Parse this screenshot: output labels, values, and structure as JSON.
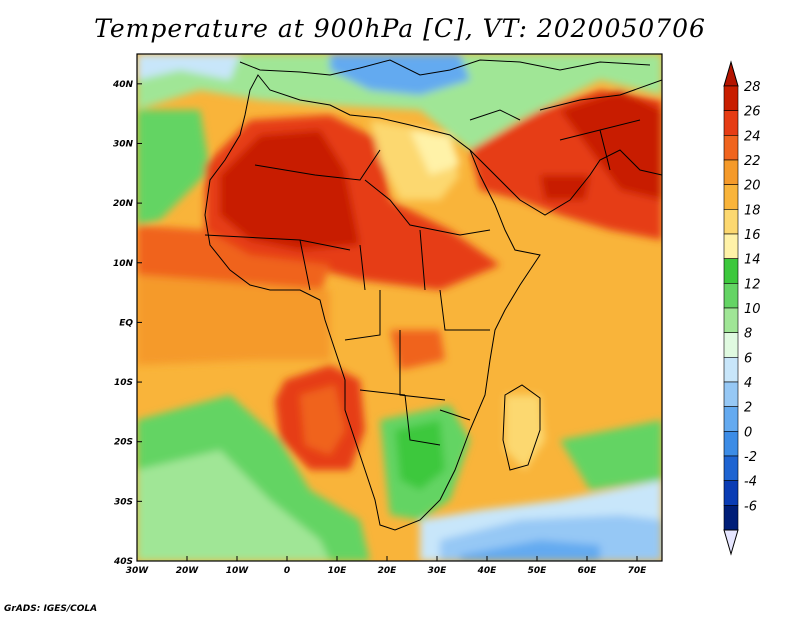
{
  "title": "Temperature at 900hPa [C], VT: 2020050706",
  "credit": "GrADS: IGES/COLA",
  "map": {
    "projection": "lat-lon",
    "lon_range": [
      -30,
      75
    ],
    "lat_range": [
      -40,
      45
    ],
    "x_ticks": [
      {
        "lon": -30,
        "label": "30W"
      },
      {
        "lon": -20,
        "label": "20W"
      },
      {
        "lon": -10,
        "label": "10W"
      },
      {
        "lon": 0,
        "label": "0"
      },
      {
        "lon": 10,
        "label": "10E"
      },
      {
        "lon": 20,
        "label": "20E"
      },
      {
        "lon": 30,
        "label": "30E"
      },
      {
        "lon": 40,
        "label": "40E"
      },
      {
        "lon": 50,
        "label": "50E"
      },
      {
        "lon": 60,
        "label": "60E"
      },
      {
        "lon": 70,
        "label": "70E"
      }
    ],
    "y_ticks": [
      {
        "lat": 40,
        "label": "40N"
      },
      {
        "lat": 30,
        "label": "30N"
      },
      {
        "lat": 20,
        "label": "20N"
      },
      {
        "lat": 10,
        "label": "10N"
      },
      {
        "lat": 0,
        "label": "EQ"
      },
      {
        "lat": -10,
        "label": "10S"
      },
      {
        "lat": -20,
        "label": "20S"
      },
      {
        "lat": -30,
        "label": "30S"
      },
      {
        "lat": -40,
        "label": "40S"
      }
    ]
  },
  "colorbar": {
    "labels": [
      "28",
      "26",
      "24",
      "22",
      "20",
      "18",
      "16",
      "14",
      "12",
      "10",
      "8",
      "6",
      "4",
      "2",
      "0",
      "-2",
      "-4",
      "-6"
    ],
    "colors": [
      "#c81e00",
      "#e63c14",
      "#f0641e",
      "#f59a2a",
      "#f9b43a",
      "#fcd870",
      "#fff2a8",
      "#3cc83c",
      "#64d464",
      "#a0e696",
      "#e0fae0",
      "#c8e6fa",
      "#96c8f5",
      "#64aaf0",
      "#3c8ce6",
      "#1e64d2",
      "#0a3cb4",
      "#001e78"
    ],
    "top_arrow_color": "#b41400",
    "bottom_arrow_color": "#e6e6ff"
  }
}
